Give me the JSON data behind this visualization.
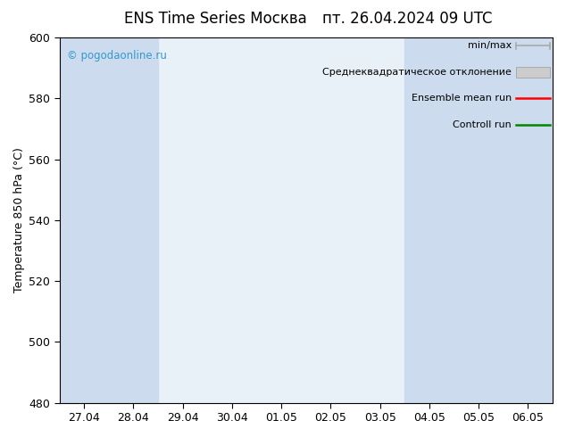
{
  "title": "ENS Time Series Москва",
  "title_right": "пт. 26.04.2024 09 UTC",
  "ylabel": "Temperature 850 hPa (°С)",
  "ylim": [
    480,
    600
  ],
  "yticks": [
    480,
    500,
    520,
    540,
    560,
    580,
    600
  ],
  "xtick_labels": [
    "27.04",
    "28.04",
    "29.04",
    "30.04",
    "01.05",
    "02.05",
    "03.05",
    "04.05",
    "05.05",
    "06.05"
  ],
  "background_color": "#ffffff",
  "plot_bg_color": "#e8f0f8",
  "shade_color": "#ccdcee",
  "watermark": "© pogodaonline.ru",
  "legend_items": [
    {
      "label": "min/max",
      "color": "#aaaaaa",
      "style": "minmax"
    },
    {
      "label": "Среднеквадратическое отклонение",
      "color": "#cccccc",
      "style": "std"
    },
    {
      "label": "Ensemble mean run",
      "color": "#ff0000",
      "style": "line"
    },
    {
      "label": "Controll run",
      "color": "#008800",
      "style": "line"
    }
  ],
  "shaded_bands": [
    0,
    1,
    7,
    8,
    9
  ],
  "n_xticks": 10,
  "title_fontsize": 12,
  "axis_fontsize": 9,
  "tick_fontsize": 9,
  "legend_fontsize": 8,
  "watermark_color": "#3399cc"
}
